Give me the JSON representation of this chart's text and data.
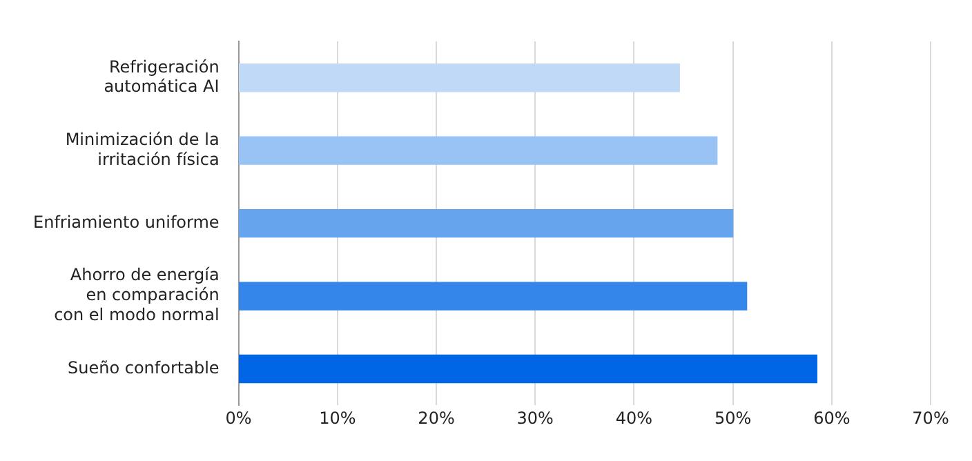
{
  "chart_data": {
    "type": "bar",
    "orientation": "horizontal",
    "categories": [
      "Refrigeración\nautomática AI",
      "Minimización de la\nirritación física",
      "Enfriamiento uniforme",
      "Ahorro de energía\nen comparación\ncon el modo normal",
      "Sueño confortable"
    ],
    "values": [
      44.6,
      48.4,
      50,
      51.4,
      58.5
    ],
    "colors": [
      "#bfd9f7",
      "#99c2f5",
      "#66a5ee",
      "#3586ea",
      "#0066e5"
    ],
    "xlim": [
      0,
      70
    ],
    "xticks": [
      {
        "value": 0,
        "label": "0%"
      },
      {
        "value": 10,
        "label": "10%"
      },
      {
        "value": 20,
        "label": "20%"
      },
      {
        "value": 30,
        "label": "30%"
      },
      {
        "value": 40,
        "label": "40%"
      },
      {
        "value": 50,
        "label": "50%"
      },
      {
        "value": 60,
        "label": "60%"
      },
      {
        "value": 70,
        "label": "70%"
      }
    ],
    "grid": "x"
  }
}
